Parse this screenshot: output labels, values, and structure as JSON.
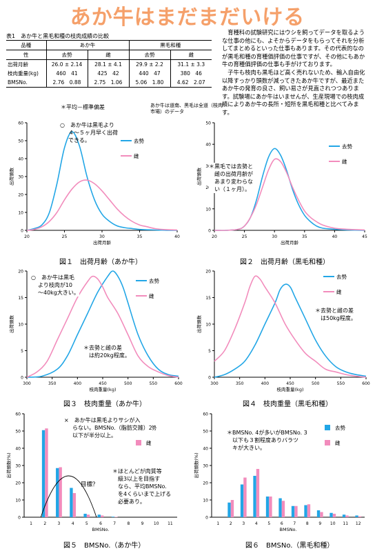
{
  "title": "あか牛はまだまだいける",
  "table": {
    "caption": "表1　あか牛と黒毛和種の枝肉成績の比較",
    "header1": [
      "品種",
      "あか牛",
      "",
      "黒毛和種",
      ""
    ],
    "header2": [
      "性",
      "去勢",
      "雌",
      "去勢",
      "雌"
    ],
    "rows": [
      [
        "出荷月齢",
        "26.0 ± 2.14",
        "28.1 ± 4.1",
        "29.9 ± 2.2",
        "31.1 ± 3.3"
      ],
      [
        "枝肉重量(kg)",
        "460　41",
        "425　42",
        "440　47",
        "380　46"
      ],
      [
        "BMSNo.",
        "2.76　0.88",
        "2.75　1.06",
        "5.06　1.80",
        "4.62　2.07"
      ]
    ],
    "note_left": "＊平均－標準偏差",
    "note_right": "あか牛は道南、黒毛は全道（枝肉市場）のデータ"
  },
  "paragraphs": [
    "育種科の試験研究にはウシを飼ってデータを取るような仕事の他にも、よそからデータをもらってそれを分析してまとめるといった仕事もあります。その代表的なのが黒毛和種の育種価評価の仕事ですが、その他にもあか牛の育種価評価の仕事も手がけております。",
    "子牛も枝肉も黒毛ほど高く売れないため、輸入自由化以降すっかり頭数が減ってきたあか牛ですが、最近またあか牛の発育の良さ、飼い易さが見直されつつあります。試験場にあか牛はいませんが、生産現場での枝肉成績によりあか牛の長所・短所を黒毛和種と比べてみます。"
  ],
  "colors": {
    "steer": "#22a6e6",
    "heifer": "#f28cbc",
    "title": "#f5a06a"
  },
  "figures": [
    {
      "caption": "図１　出荷月齢（あか牛）",
      "annotation": [
        "○　あか牛は黒毛より",
        "４～５ヶ月早く出荷",
        "できる。"
      ],
      "legend": [
        "去勢",
        "雌"
      ],
      "chart_data": {
        "type": "line",
        "xlabel": "出荷月齢",
        "ylabel": "出荷頭数",
        "grid": false,
        "xlim": [
          20,
          40
        ],
        "ylim": [
          0,
          60
        ],
        "xticks": [
          20,
          25,
          30,
          35,
          40
        ],
        "yticks": [
          0,
          10,
          20,
          30,
          40,
          50,
          60
        ],
        "series": [
          {
            "name": "去勢",
            "x": [
              20,
              21,
              22,
              23,
              24,
              25,
              26,
              27,
              28,
              29,
              30,
              31,
              32,
              33,
              34,
              35,
              36,
              37,
              38,
              39,
              40
            ],
            "values": [
              0,
              1,
              3,
              10,
              26,
              46,
              55,
              47,
              30,
              17,
              9,
              5,
              2.5,
              1.5,
              1,
              0.5,
              0.3,
              0.2,
              0.1,
              0,
              0
            ]
          },
          {
            "name": "雌",
            "x": [
              20,
              21,
              22,
              23,
              24,
              25,
              26,
              27,
              28,
              29,
              30,
              31,
              32,
              33,
              34,
              35,
              36,
              37,
              38,
              39,
              40
            ],
            "values": [
              0,
              0.5,
              2,
              5,
              10,
              17,
              23,
              27,
              28,
              26,
              22,
              17,
              12,
              8,
              5,
              3,
              2,
              1,
              0.5,
              0.3,
              0.2
            ]
          }
        ]
      }
    },
    {
      "caption": "図２　出荷月齢（黒毛和種）",
      "annotation": [
        "＊黒毛では去勢と",
        "雌の出荷月齢が",
        "あまり変わらな",
        "い（１ヶ月）。"
      ],
      "legend": [
        "去勢",
        "雌"
      ],
      "chart_data": {
        "type": "line",
        "xlabel": "出荷月齢",
        "ylabel": "出荷頭数",
        "grid": false,
        "xlim": [
          20,
          45
        ],
        "ylim": [
          0,
          50
        ],
        "xticks": [
          20,
          25,
          30,
          35,
          40,
          45
        ],
        "yticks": [
          0,
          10,
          20,
          30,
          40,
          50
        ],
        "series": [
          {
            "name": "去勢",
            "x": [
              20,
              22,
              24,
              25,
              26,
              27,
              28,
              29,
              30,
              31,
              32,
              33,
              34,
              35,
              36,
              37,
              38,
              40,
              42,
              45
            ],
            "values": [
              0,
              0,
              0.5,
              2,
              6,
              14,
              25,
              34,
              38,
              35,
              28,
              19,
              12,
              7,
              4,
              2,
              1,
              0.5,
              0.2,
              0
            ]
          },
          {
            "name": "雌",
            "x": [
              20,
              22,
              24,
              25,
              26,
              27,
              28,
              29,
              30,
              31,
              32,
              33,
              34,
              35,
              36,
              37,
              38,
              40,
              42,
              45
            ],
            "values": [
              0,
              0,
              0.5,
              2,
              6,
              12,
              20,
              28,
              33,
              32,
              27,
              20,
              14,
              9,
              6,
              4,
              2.5,
              1,
              0.5,
              0.2
            ]
          }
        ]
      }
    },
    {
      "caption": "図３　枝肉重量（あか牛）",
      "annotation": [
        "○　あか牛は黒毛",
        "より枝肉が10",
        "～40kg大きい。"
      ],
      "annotation2": [
        "＊去勢と雌の差",
        "は約20kg程度。"
      ],
      "legend": [
        "去勢",
        "雌"
      ],
      "chart_data": {
        "type": "line",
        "xlabel": "枝肉重量(kg)",
        "ylabel": "出荷頭数",
        "grid": false,
        "xlim": [
          300,
          600
        ],
        "ylim": [
          0,
          20
        ],
        "xticks": [
          300,
          350,
          400,
          450,
          500,
          550,
          600
        ],
        "yticks": [
          0,
          5,
          10,
          15,
          20
        ],
        "series": [
          {
            "name": "去勢",
            "x": [
              300,
              330,
              360,
              380,
              400,
              420,
              440,
              460,
              470,
              480,
              490,
              500,
              520,
              540,
              560,
              580,
              600
            ],
            "values": [
              0,
              0.2,
              1.5,
              4,
              8,
              12,
              16,
              19,
              20,
              19,
              17,
              14,
              8,
              4,
              1.5,
              0.5,
              0.2
            ]
          },
          {
            "name": "雌",
            "x": [
              300,
              320,
              340,
              360,
              380,
              400,
              420,
              430,
              440,
              450,
              460,
              480,
              500,
              520,
              540,
              560,
              580,
              600
            ],
            "values": [
              0,
              1,
              3,
              7,
              11,
              15,
              18,
              19,
              18.5,
              17,
              15,
              12,
              8,
              4,
              2,
              1,
              0.3,
              0
            ]
          }
        ]
      }
    },
    {
      "caption": "図４　枝肉重量（黒毛和種）",
      "annotation": [
        "＊去勢と雌の差",
        "は50kg程度。"
      ],
      "legend": [
        "去勢",
        "雌"
      ],
      "chart_data": {
        "type": "line",
        "xlabel": "枝肉重量(kg)",
        "ylabel": "出荷頭数",
        "grid": false,
        "xlim": [
          300,
          600
        ],
        "ylim": [
          0,
          20
        ],
        "xticks": [
          300,
          350,
          400,
          450,
          500,
          550,
          600
        ],
        "yticks": [
          0,
          5,
          10,
          15,
          20
        ],
        "series": [
          {
            "name": "去勢",
            "x": [
              300,
              320,
              340,
              360,
              380,
              400,
              420,
              430,
              440,
              450,
              460,
              480,
              500,
              520,
              540,
              560,
              580,
              600
            ],
            "values": [
              0,
              0.5,
              1.5,
              3,
              6,
              10,
              14,
              16.5,
              17.5,
              17,
              15,
              11,
              7,
              4,
              2,
              1,
              0.5,
              0.2
            ]
          },
          {
            "name": "雌",
            "x": [
              300,
              320,
              340,
              360,
              370,
              380,
              390,
              400,
              420,
              440,
              460,
              480,
              500,
              520,
              540,
              560,
              580,
              600
            ],
            "values": [
              3,
              5,
              9,
              14,
              17,
              19,
              18.5,
              17,
              14,
              10,
              7,
              4.5,
              3,
              1.5,
              1,
              0.5,
              0.2,
              0
            ]
          }
        ]
      }
    },
    {
      "caption": "図５　BMSNo.（あか牛）",
      "annotation": [
        "×　あか牛は黒毛よりサシが入",
        "らない。BMSNo.（脂肪交雑）2",
        "以下が半分以上。"
      ],
      "annotation2": [
        "＊ほとんどが肉質等",
        "級3以上を目指す",
        "なら、平均BMSNo.",
        "を4くらいまで上げる",
        "必要あり。"
      ],
      "target_label": "目標？",
      "legend": [
        "去勢",
        "雌"
      ],
      "chart_data": {
        "type": "bar",
        "xlabel": "BMSNo.",
        "ylabel": "出荷頭数(%)",
        "grid": false,
        "categories": [
          "1",
          "2",
          "3",
          "4",
          "5",
          "6",
          "7",
          "8",
          "9",
          "10",
          "11"
        ],
        "ylim": [
          0,
          60
        ],
        "yticks": [
          0,
          10,
          20,
          30,
          40,
          50,
          60
        ],
        "series": [
          {
            "name": "去勢",
            "values": [
              0,
              50.5,
              28.5,
              17,
              2,
              1.5,
              0.3,
              0,
              0,
              0,
              0
            ]
          },
          {
            "name": "雌",
            "values": [
              0,
              51.5,
              29,
              14,
              1.5,
              1,
              0.2,
              0,
              0,
              0,
              0
            ]
          }
        ]
      }
    },
    {
      "caption": "図６　BMSNo.（黒毛和種）",
      "annotation": [
        "＊BMSNo. 4が多いがBMSNo. 3",
        "以下も３割程度ありバラツ",
        "キが大きい。"
      ],
      "legend": [
        "去勢",
        "雌"
      ],
      "chart_data": {
        "type": "bar",
        "xlabel": "BMSNo.",
        "ylabel": "出荷頭数(%)",
        "grid": false,
        "categories": [
          "1",
          "2",
          "3",
          "4",
          "5",
          "6",
          "7",
          "8",
          "9",
          "10",
          "11",
          "12"
        ],
        "ylim": [
          0,
          60
        ],
        "yticks": [
          0,
          10,
          20,
          30,
          40,
          50,
          60
        ],
        "series": [
          {
            "name": "去勢",
            "values": [
              0,
              8.5,
              19,
              24,
              12,
              11,
              6.5,
              7,
              4,
              2.5,
              1.5,
              1
            ]
          },
          {
            "name": "雌",
            "values": [
              0,
              10,
              23,
              28,
              12,
              9.5,
              6.5,
              7.5,
              3,
              2,
              1,
              0.5
            ]
          }
        ]
      }
    }
  ]
}
